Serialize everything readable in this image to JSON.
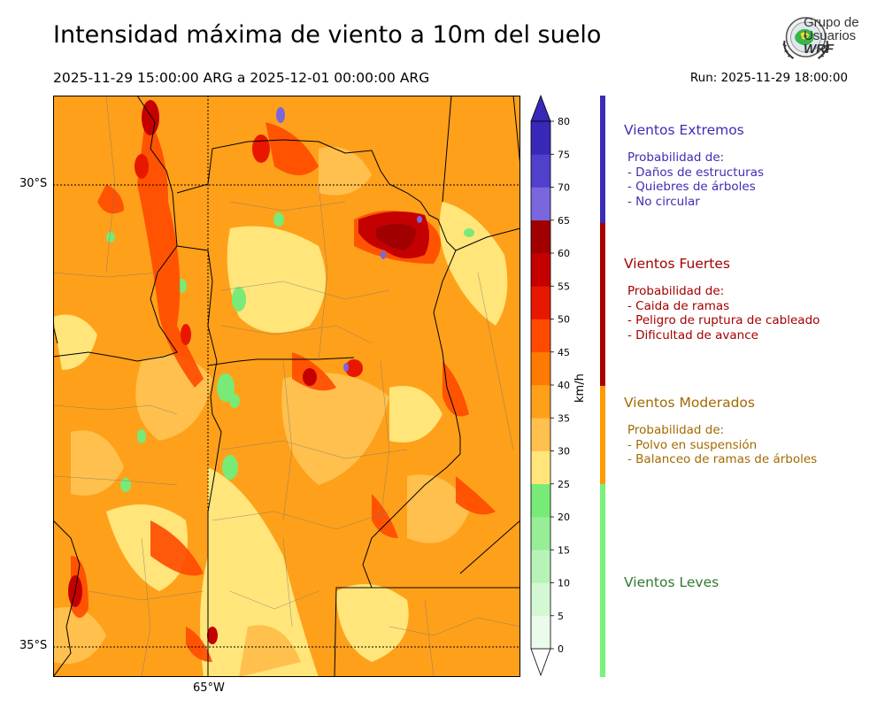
{
  "header": {
    "title": "Intensidad máxima de viento a 10m del suelo",
    "period": "2025-11-29 15:00:00 ARG  a  2025-12-01 00:00:00 ARG",
    "run": "Run: 2025-11-29 18:00:00"
  },
  "logo": {
    "line1": "Grupo de",
    "line2": "Usuarios",
    "line3": "WRF",
    "icon": "globe-emblem-icon"
  },
  "map": {
    "lat_labels": [
      "30°S",
      "35°S"
    ],
    "lon_labels": [
      "65°W"
    ],
    "extent_desc": "central Argentina"
  },
  "colorbar": {
    "unit": "km/h",
    "ticks": [
      "0",
      "5",
      "10",
      "15",
      "20",
      "25",
      "30",
      "35",
      "40",
      "45",
      "50",
      "55",
      "60",
      "65",
      "70",
      "75",
      "80"
    ],
    "colors": [
      "#ebfbeb",
      "#d4f7d4",
      "#b7f3b7",
      "#97ee97",
      "#78ea78",
      "#ffe57a",
      "#ffc04d",
      "#ffa01a",
      "#ff7a00",
      "#ff4a00",
      "#e81800",
      "#c40000",
      "#a00000",
      "#7a66dd",
      "#5040cc",
      "#3828b8"
    ],
    "extend": "both"
  },
  "legend": {
    "categories": [
      {
        "name": "Vientos Extremos",
        "color": "#3f2db3",
        "bar": "#3a2db8",
        "lines": [
          "Probabilidad de:",
          "- Daños de estructuras",
          "- Quiebres de árboles",
          "- No circular"
        ]
      },
      {
        "name": "Vientos Fuertes",
        "color": "#a30000",
        "bar": "#a80000",
        "lines": [
          "Probabilidad de:",
          "- Caida de ramas",
          "- Peligro de ruptura de cableado",
          "- Dificultad de avance"
        ]
      },
      {
        "name": "Vientos Moderados",
        "color": "#a36a00",
        "bar": "#ff9a00",
        "lines": [
          "Probabilidad de:",
          "- Polvo en suspensión",
          "- Balanceo de ramas de árboles"
        ]
      },
      {
        "name": "Vientos Leves",
        "color": "#2e7a2e",
        "bar": "#7bf27b",
        "lines": []
      }
    ]
  }
}
